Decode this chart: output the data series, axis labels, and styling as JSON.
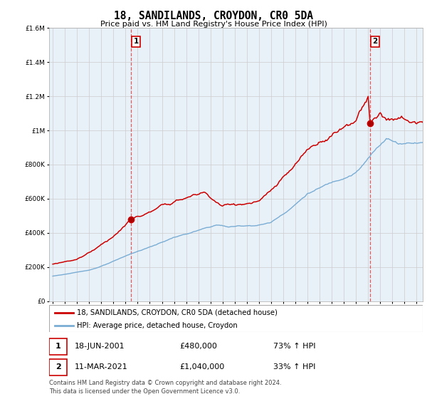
{
  "title": "18, SANDILANDS, CROYDON, CR0 5DA",
  "subtitle": "Price paid vs. HM Land Registry's House Price Index (HPI)",
  "red_label": "18, SANDILANDS, CROYDON, CR0 5DA (detached house)",
  "blue_label": "HPI: Average price, detached house, Croydon",
  "sale1_date": "18-JUN-2001",
  "sale1_price": 480000,
  "sale1_label": "£480,000",
  "sale1_pct": "73% ↑ HPI",
  "sale2_date": "11-MAR-2021",
  "sale2_price": 1040000,
  "sale2_label": "£1,040,000",
  "sale2_pct": "33% ↑ HPI",
  "footer": "Contains HM Land Registry data © Crown copyright and database right 2024.\nThis data is licensed under the Open Government Licence v3.0.",
  "red_color": "#cc0000",
  "blue_color": "#7aadd4",
  "blue_fill": "#ddeeff",
  "dashed_color": "#dd4444",
  "bg_color": "#ffffff",
  "plot_bg": "#e8f0f8",
  "grid_color": "#cccccc",
  "ylim": [
    0,
    1600000
  ],
  "xlim_start": 1994.7,
  "xlim_end": 2025.5,
  "sale1_x": 2001.458,
  "sale2_x": 2021.167
}
